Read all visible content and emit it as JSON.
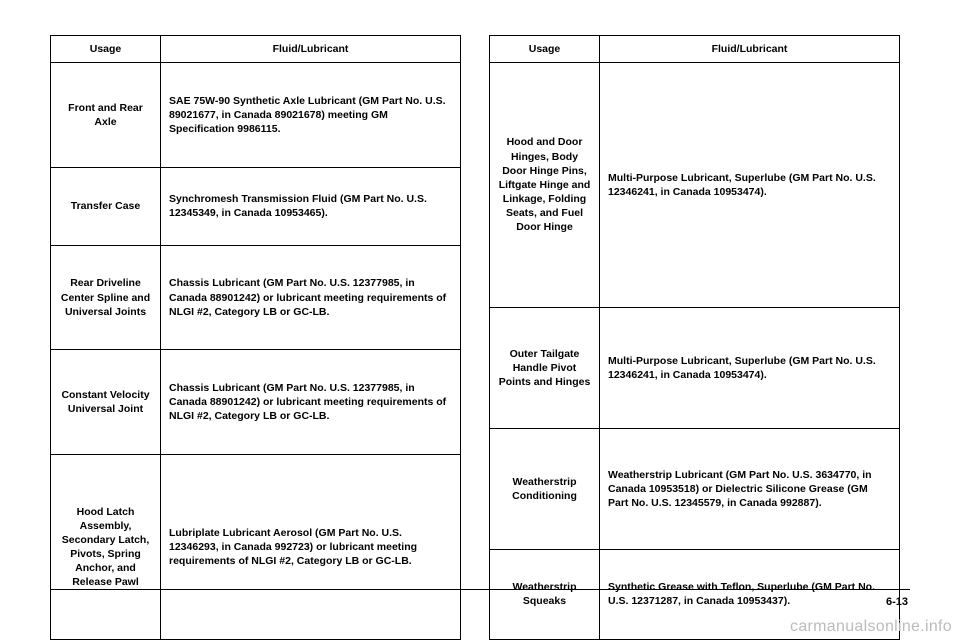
{
  "headers": {
    "usage": "Usage",
    "fluid": "Fluid/Lubricant"
  },
  "left": [
    {
      "usage": "Front and Rear Axle",
      "fluid": "SAE 75W-90 Synthetic Axle Lubricant (GM Part No. U.S. 89021677, in Canada 89021678) meeting GM Specification 9986115."
    },
    {
      "usage": "Transfer Case",
      "fluid": "Synchromesh Transmission Fluid (GM Part No. U.S. 12345349, in Canada 10953465)."
    },
    {
      "usage": "Rear Driveline Center Spline and Universal Joints",
      "fluid": "Chassis Lubricant (GM Part No. U.S. 12377985, in Canada 88901242) or lubricant meeting requirements of NLGI #2, Category LB or GC-LB."
    },
    {
      "usage": "Constant Velocity Universal Joint",
      "fluid": "Chassis Lubricant (GM Part No. U.S. 12377985, in Canada 88901242) or lubricant meeting requirements of NLGI #2, Category LB or GC-LB."
    },
    {
      "usage": "Hood Latch Assembly, Secondary Latch, Pivots, Spring Anchor, and Release Pawl",
      "fluid": "Lubriplate Lubricant Aerosol (GM Part No. U.S. 12346293, in Canada 992723) or lubricant meeting requirements of NLGI #2, Category LB or GC-LB."
    }
  ],
  "right": [
    {
      "usage": "Hood and Door Hinges, Body Door Hinge Pins, Liftgate Hinge and Linkage, Folding Seats, and Fuel Door Hinge",
      "fluid": "Multi-Purpose Lubricant, Superlube (GM Part No. U.S. 12346241, in Canada 10953474)."
    },
    {
      "usage": "Outer Tailgate Handle Pivot Points and Hinges",
      "fluid": "Multi-Purpose Lubricant, Superlube (GM Part No. U.S. 12346241, in Canada 10953474)."
    },
    {
      "usage": "Weatherstrip Conditioning",
      "fluid": "Weatherstrip Lubricant (GM Part No. U.S. 3634770, in Canada 10953518) or Dielectric Silicone Grease (GM Part No. U.S. 12345579, in Canada 992887)."
    },
    {
      "usage": "Weatherstrip Squeaks",
      "fluid": "Synthetic Grease with Teflon, Superlube (GM Part No. U.S. 12371287, in Canada 10953437)."
    }
  ],
  "pagenum": "6-13",
  "watermark": "carmanualsonline.info"
}
